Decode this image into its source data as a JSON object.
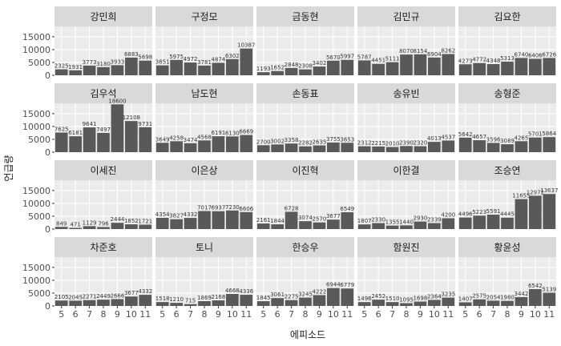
{
  "chart_data": {
    "type": "bar",
    "xlabel": "에피소드",
    "ylabel": "언급량",
    "x": [
      5,
      6,
      7,
      8,
      9,
      10,
      11
    ],
    "ylim": [
      0,
      19000
    ],
    "yticks": [
      0,
      5000,
      10000,
      15000
    ],
    "grid": true,
    "bar_color": "#595959",
    "panel_bg": "#ebebeb",
    "strip_bg": "#d9d9d9",
    "panels": [
      {
        "name": "강민희",
        "values": [
          2325,
          1931,
          3773,
          3180,
          3933,
          6883,
          5698
        ]
      },
      {
        "name": "구정모",
        "values": [
          3851,
          5975,
          4972,
          3781,
          4874,
          6302,
          10387
        ]
      },
      {
        "name": "금동현",
        "values": [
          1193,
          1652,
          2848,
          2308,
          3402,
          5670,
          5997
        ]
      },
      {
        "name": "김민규",
        "values": [
          5787,
          4451,
          5111,
          8070,
          8154,
          6904,
          8262
        ]
      },
      {
        "name": "김요한",
        "values": [
          4273,
          4772,
          4348,
          5313,
          6740,
          6406,
          6726
        ]
      },
      {
        "name": "김우석",
        "values": [
          7625,
          6181,
          9641,
          7497,
          18600,
          12108,
          9731
        ]
      },
      {
        "name": "남도현",
        "values": [
          3649,
          4258,
          3474,
          4568,
          6191,
          6130,
          6669
        ]
      },
      {
        "name": "손동표",
        "values": [
          2700,
          3002,
          3358,
          2282,
          2635,
          3755,
          3653
        ]
      },
      {
        "name": "송유빈",
        "values": [
          2312,
          2215,
          2010,
          2390,
          2320,
          4013,
          4537
        ]
      },
      {
        "name": "송형준",
        "values": [
          5642,
          4657,
          3596,
          3089,
          4265,
          5701,
          5864
        ]
      },
      {
        "name": "이세진",
        "values": [
          849,
          471,
          1129,
          796,
          2444,
          1852,
          1721
        ]
      },
      {
        "name": "이은상",
        "values": [
          4354,
          3827,
          4332,
          7017,
          6937,
          7230,
          6606
        ]
      },
      {
        "name": "이진혁",
        "values": [
          2161,
          1844,
          6728,
          3074,
          2570,
          3677,
          6549
        ]
      },
      {
        "name": "이한결",
        "values": [
          1807,
          2330,
          1355,
          1440,
          2930,
          2339,
          4200
        ]
      },
      {
        "name": "조승연",
        "values": [
          4496,
          5223,
          5591,
          4445,
          11655,
          12972,
          13637
        ]
      },
      {
        "name": "차준호",
        "values": [
          2105,
          2045,
          2271,
          2449,
          2666,
          3677,
          4332
        ]
      },
      {
        "name": "토니",
        "values": [
          1518,
          1210,
          715,
          1869,
          2168,
          4668,
          4336
        ]
      },
      {
        "name": "한승우",
        "values": [
          1845,
          3061,
          2275,
          3245,
          4222,
          6944,
          6779
        ]
      },
      {
        "name": "함원진",
        "values": [
          1496,
          2452,
          1510,
          1095,
          1698,
          2364,
          3235
        ]
      },
      {
        "name": "황윤성",
        "values": [
          1407,
          2575,
          2054,
          1980,
          3442,
          6542,
          5139
        ]
      }
    ]
  }
}
